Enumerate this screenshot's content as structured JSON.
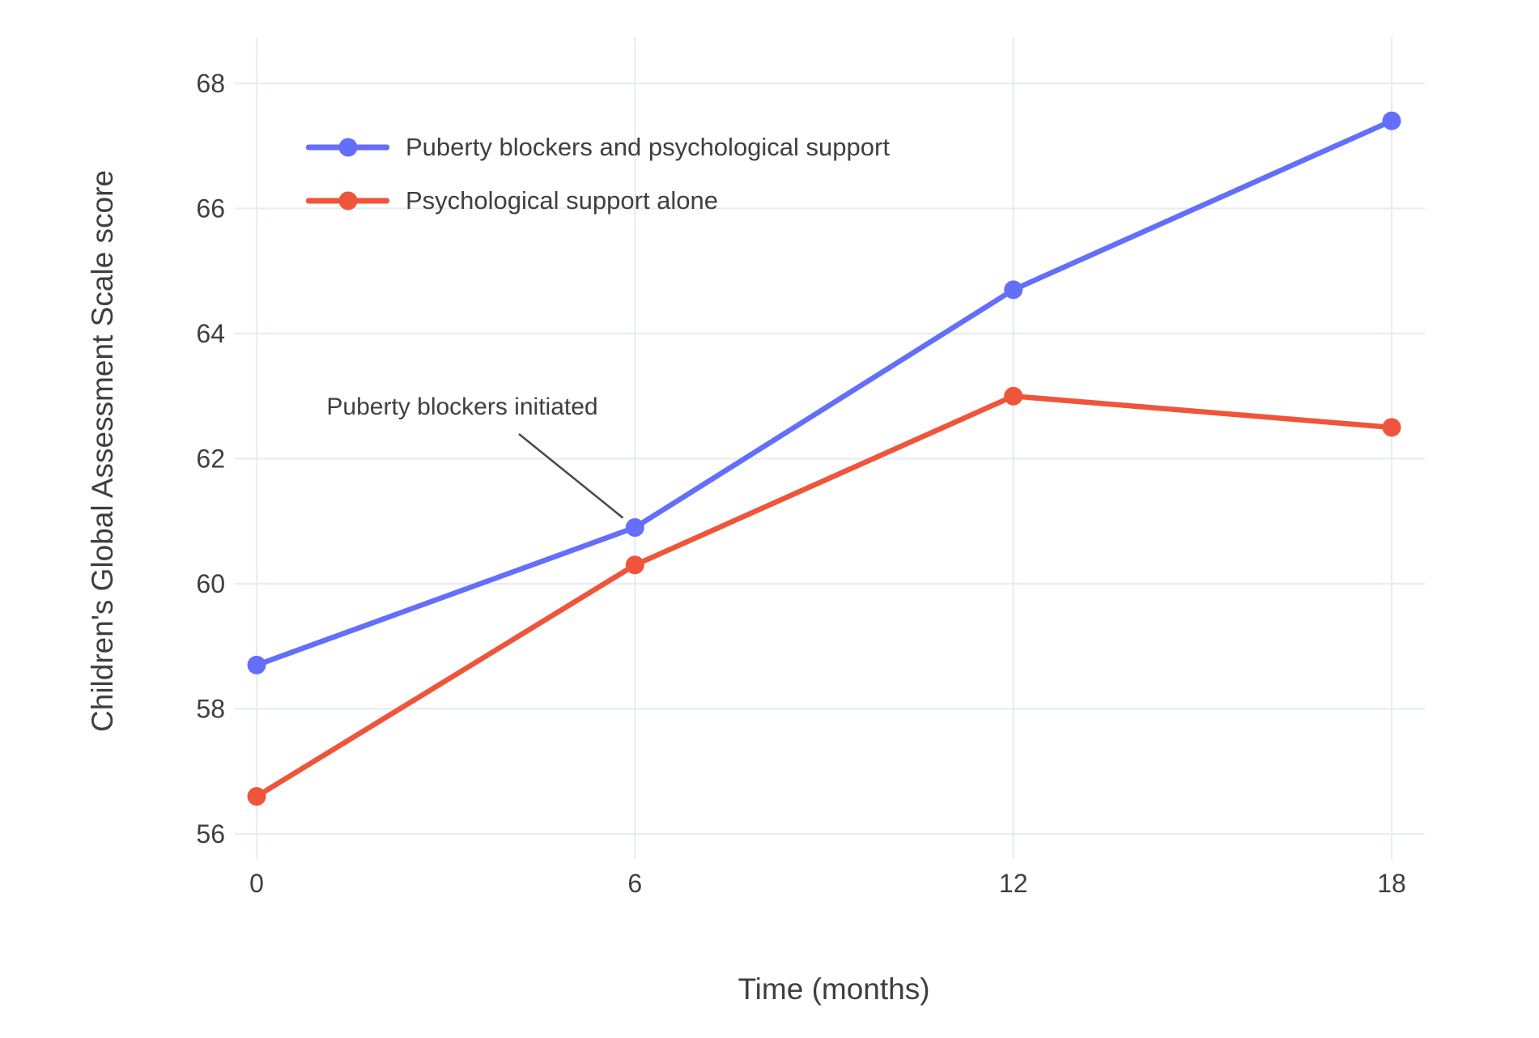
{
  "chart_data": {
    "type": "line",
    "title": "",
    "xlabel": "Time (months)",
    "ylabel": "Children's Global Assessment Scale score",
    "x": [
      0,
      6,
      12,
      18
    ],
    "xticks": [
      0,
      6,
      12,
      18
    ],
    "yticks": [
      56,
      58,
      60,
      62,
      64,
      66,
      68
    ],
    "xlim": [
      0,
      18
    ],
    "ylim": [
      56,
      68
    ],
    "grid": true,
    "legend_position": "inside-top-left",
    "series": [
      {
        "name": "Puberty blockers and psychological support",
        "color": "#636EFA",
        "values": [
          58.7,
          60.9,
          64.7,
          67.4
        ]
      },
      {
        "name": "Psychological support alone",
        "color": "#EF553B",
        "values": [
          56.6,
          60.3,
          63.0,
          62.5
        ]
      }
    ],
    "annotation": {
      "text": "Puberty blockers initiated",
      "target_x": 6,
      "target_y": 60.9
    },
    "colors": {
      "grid": "#E8ECF6",
      "text": "#3F3F3F",
      "annotation_line": "#4A4A4A",
      "background": "#FFFFFF"
    }
  }
}
